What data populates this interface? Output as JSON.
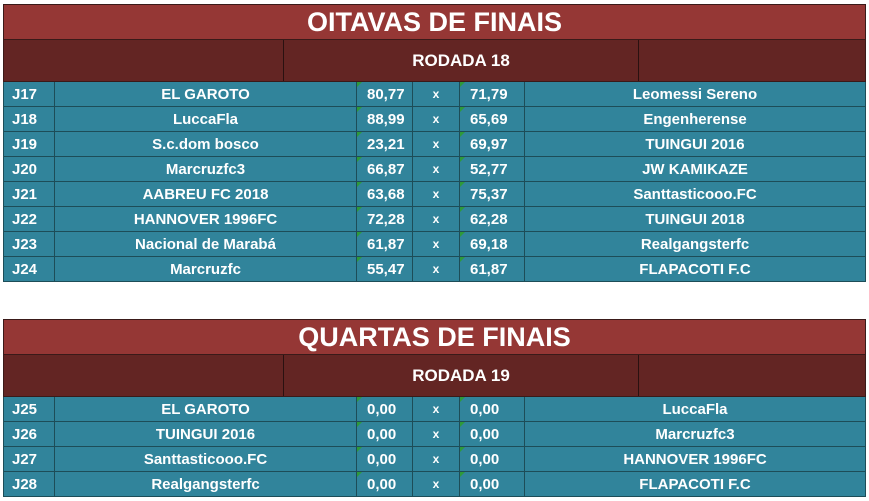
{
  "oitavas": {
    "title": "OITAVAS DE FINAIS",
    "rodada": "RODADA 18",
    "matches": [
      {
        "j": "J17",
        "team1": "EL GAROTO",
        "score1": "80,77",
        "x": "x",
        "score2": "71,79",
        "team2": "Leomessi Sereno"
      },
      {
        "j": "J18",
        "team1": "LuccaFla",
        "score1": "88,99",
        "x": "x",
        "score2": "65,69",
        "team2": "Engenherense"
      },
      {
        "j": "J19",
        "team1": "S.c.dom bosco",
        "score1": "23,21",
        "x": "x",
        "score2": "69,97",
        "team2": "TUINGUI 2016"
      },
      {
        "j": "J20",
        "team1": "Marcruzfc3",
        "score1": "66,87",
        "x": "x",
        "score2": "52,77",
        "team2": "JW KAMIKAZE"
      },
      {
        "j": "J21",
        "team1": "AABREU FC 2018",
        "score1": "63,68",
        "x": "x",
        "score2": "75,37",
        "team2": "Santtasticooo.FC"
      },
      {
        "j": "J22",
        "team1": "HANNOVER 1996FC",
        "score1": "72,28",
        "x": "x",
        "score2": "62,28",
        "team2": "TUINGUI 2018"
      },
      {
        "j": "J23",
        "team1": "Nacional de Marabá",
        "score1": "61,87",
        "x": "x",
        "score2": "69,18",
        "team2": "Realgangsterfc"
      },
      {
        "j": "J24",
        "team1": "Marcruzfc",
        "score1": "55,47",
        "x": "x",
        "score2": "61,87",
        "team2": "FLAPACOTI F.C"
      }
    ]
  },
  "quartas": {
    "title": "QUARTAS DE FINAIS",
    "rodada": "RODADA 19",
    "matches": [
      {
        "j": "J25",
        "team1": "EL GAROTO",
        "score1": "0,00",
        "x": "x",
        "score2": "0,00",
        "team2": "LuccaFla"
      },
      {
        "j": "J26",
        "team1": "TUINGUI 2016",
        "score1": "0,00",
        "x": "x",
        "score2": "0,00",
        "team2": "Marcruzfc3"
      },
      {
        "j": "J27",
        "team1": "Santtasticooo.FC",
        "score1": "0,00",
        "x": "x",
        "score2": "0,00",
        "team2": "HANNOVER 1996FC"
      },
      {
        "j": "J28",
        "team1": "Realgangsterfc",
        "score1": "0,00",
        "x": "x",
        "score2": "0,00",
        "team2": "FLAPACOTI F.C"
      }
    ]
  }
}
